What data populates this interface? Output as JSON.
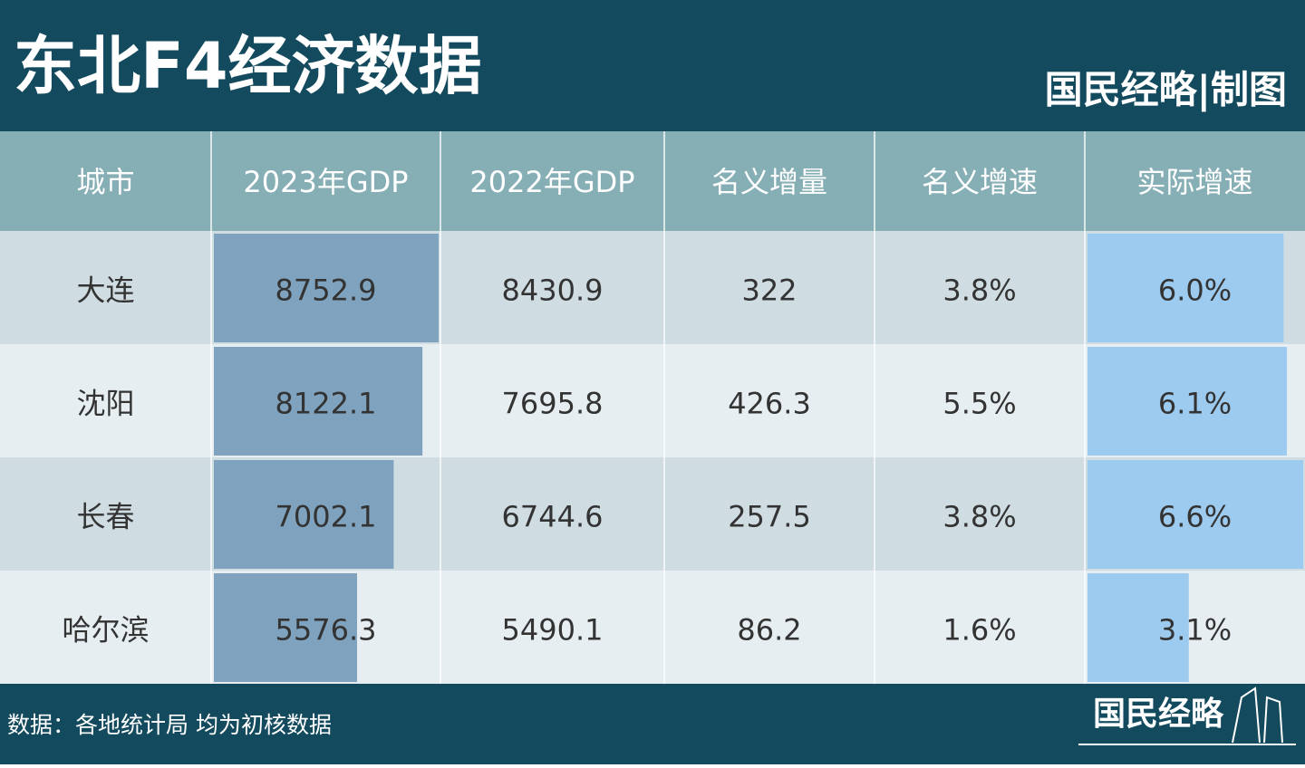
{
  "header": {
    "title": "东北F4经济数据",
    "credit": "国民经略|制图"
  },
  "table": {
    "columns": [
      "城市",
      "2023年GDP",
      "2022年GDP",
      "名义增量",
      "名义增速",
      "实际增速"
    ],
    "rows": [
      [
        "大连",
        8752.9,
        8430.9,
        322,
        {
          "value": 3.8,
          "label": "3.8%"
        },
        {
          "value": 6.0,
          "label": "6.0%"
        }
      ],
      [
        "沈阳",
        8122.1,
        7695.8,
        426.3,
        {
          "value": 5.5,
          "label": "5.5%"
        },
        {
          "value": 6.1,
          "label": "6.1%"
        }
      ],
      [
        "长春",
        7002.1,
        6744.6,
        257.5,
        {
          "value": 3.8,
          "label": "3.8%"
        },
        {
          "value": 6.6,
          "label": "6.6%"
        }
      ],
      [
        "哈尔滨",
        5576.3,
        5490.1,
        86.2,
        {
          "value": 1.6,
          "label": "1.6%"
        },
        {
          "value": 3.1,
          "label": "3.1%"
        }
      ]
    ]
  },
  "footer": {
    "source": "数据：各地统计局  均为初核数据",
    "logo": "国民经略"
  }
}
